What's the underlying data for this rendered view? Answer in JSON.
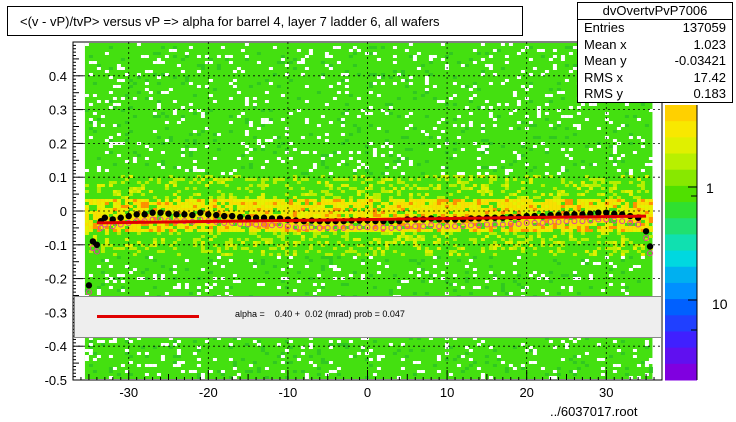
{
  "title": "<(v - vP)/tvP> versus   vP => alpha for barrel 4, layer 7 ladder 6, all wafers",
  "stats": {
    "name": "dvOvertvPvP7006",
    "rows": [
      {
        "label": "Entries",
        "value": "137059"
      },
      {
        "label": "Mean x",
        "value": "1.023"
      },
      {
        "label": "Mean y",
        "value": "-0.03421"
      },
      {
        "label": "RMS x",
        "value": "17.42"
      },
      {
        "label": "RMS y",
        "value": "0.183"
      }
    ]
  },
  "fit": {
    "text": "alpha =    0.40 +  0.02 (mrad) prob = 0.047",
    "line_color": "#e00000"
  },
  "footer": "../6037017.root",
  "chart_data": {
    "type": "heatmap",
    "xlim": [
      -37,
      37
    ],
    "ylim": [
      -0.5,
      0.5
    ],
    "xticks": [
      -30,
      -20,
      -10,
      0,
      10,
      20,
      30
    ],
    "yticks": [
      -0.5,
      -0.4,
      -0.3,
      -0.2,
      -0.1,
      0,
      0.1,
      0.2,
      0.3,
      0.4
    ],
    "ytick_labels": [
      "-0.5",
      "-0.4",
      "-0.3",
      "-0.2",
      "-0.1",
      "0",
      "0.1",
      "0.2",
      "0.3",
      "0.4"
    ],
    "colorbar_labels": [
      "1",
      "10"
    ],
    "grid": true,
    "background_color": "#44e010",
    "profile_mean": {
      "x": [
        -35,
        -34.5,
        -34,
        -33.5,
        -33,
        -32,
        -31,
        -30,
        -29,
        -28,
        -27,
        -26,
        -25,
        -24,
        -23,
        -22,
        -21,
        -20,
        -19,
        -18,
        -17,
        -16,
        -15,
        -14,
        -13,
        -12,
        -11,
        -10,
        -9,
        -8,
        -7,
        -6,
        -5,
        -4,
        -3,
        -2,
        -1,
        0,
        1,
        2,
        3,
        4,
        5,
        6,
        7,
        8,
        9,
        10,
        11,
        12,
        13,
        14,
        15,
        16,
        17,
        18,
        19,
        20,
        21,
        22,
        23,
        24,
        25,
        26,
        27,
        28,
        29,
        30,
        31,
        32,
        33,
        34,
        35,
        35.5
      ],
      "y": [
        -0.22,
        -0.09,
        -0.1,
        -0.03,
        -0.02,
        -0.025,
        -0.02,
        -0.015,
        -0.01,
        -0.01,
        -0.005,
        -0.005,
        -0.008,
        -0.01,
        -0.01,
        -0.012,
        -0.005,
        -0.01,
        -0.012,
        -0.015,
        -0.015,
        -0.018,
        -0.02,
        -0.02,
        -0.02,
        -0.022,
        -0.022,
        -0.025,
        -0.028,
        -0.03,
        -0.028,
        -0.03,
        -0.03,
        -0.03,
        -0.03,
        -0.028,
        -0.028,
        -0.028,
        -0.03,
        -0.03,
        -0.03,
        -0.03,
        -0.025,
        -0.025,
        -0.025,
        -0.022,
        -0.025,
        -0.025,
        -0.025,
        -0.025,
        -0.022,
        -0.022,
        -0.02,
        -0.02,
        -0.02,
        -0.018,
        -0.018,
        -0.015,
        -0.015,
        -0.015,
        -0.012,
        -0.012,
        -0.01,
        -0.01,
        -0.01,
        -0.008,
        -0.005,
        -0.005,
        -0.008,
        -0.01,
        -0.015,
        -0.02,
        -0.06,
        -0.105
      ]
    },
    "fit_line": {
      "x": [
        -34,
        35
      ],
      "y": [
        -0.035,
        -0.015
      ]
    }
  }
}
